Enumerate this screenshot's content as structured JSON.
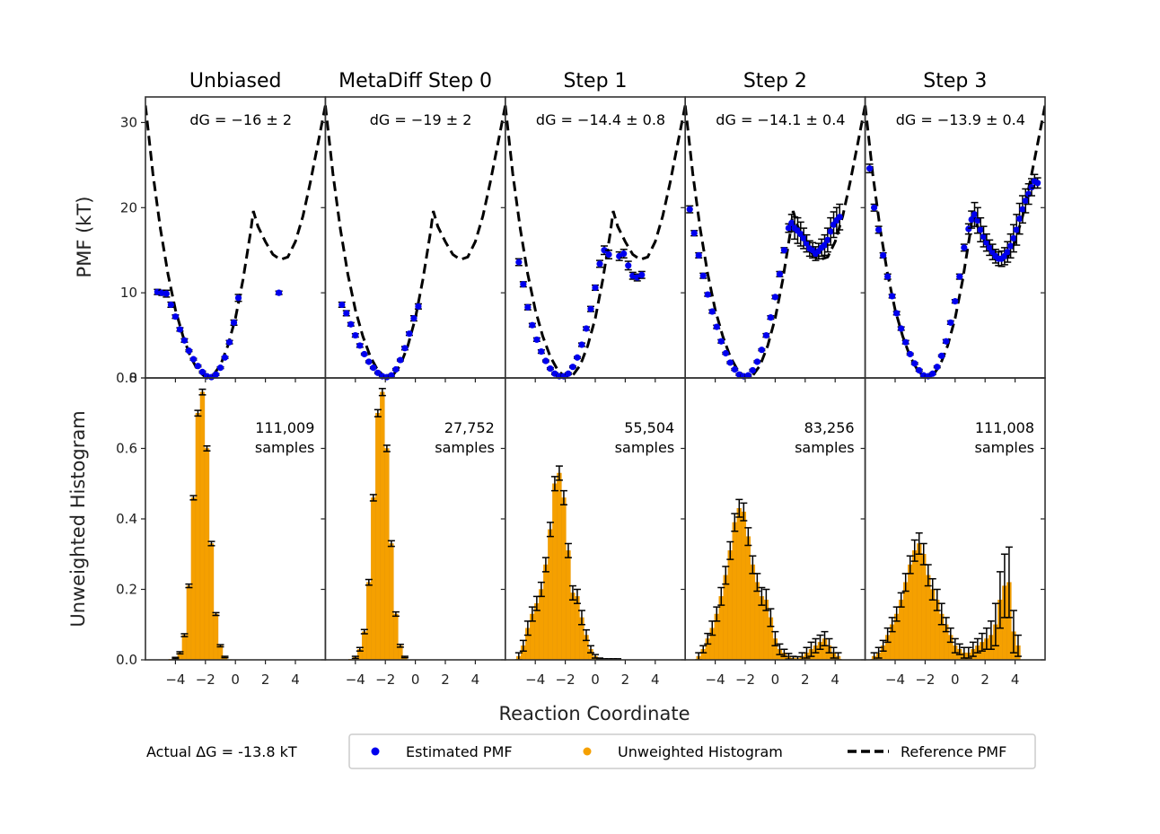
{
  "chart_data": {
    "type": "multi-panel",
    "xlabel": "Reaction Coordinate",
    "ylabel_top": "PMF (kT)",
    "ylabel_bottom": "Unweighted Histogram",
    "xlim": [
      -6,
      6
    ],
    "top_ylim": [
      0,
      33
    ],
    "bottom_ylim": [
      0,
      0.8
    ],
    "x_ticks": [
      "−4",
      "−2",
      "0",
      "2",
      "4"
    ],
    "top_y_ticks": [
      "0",
      "10",
      "20",
      "30"
    ],
    "bottom_y_ticks": [
      "0.0",
      "0.2",
      "0.4",
      "0.6",
      "0.8"
    ],
    "reference_pmf": {
      "name": "Reference PMF",
      "x": [
        -6,
        -5.5,
        -5,
        -4.5,
        -4,
        -3.5,
        -3,
        -2.5,
        -2,
        -1.5,
        -1,
        -0.5,
        0,
        0.5,
        1,
        1.2,
        1.5,
        2,
        2.5,
        3,
        3.5,
        4,
        4.5,
        5,
        5.5,
        6
      ],
      "y": [
        32,
        24,
        17.5,
        12.2,
        8,
        4.9,
        2.5,
        0.9,
        0.1,
        0.3,
        1.5,
        3.8,
        7,
        11.5,
        17,
        19.6,
        17.8,
        16,
        14.5,
        13.9,
        14.2,
        16,
        19,
        23,
        27.5,
        32
      ]
    },
    "panels": [
      {
        "title": "Unbiased",
        "dG": "dG = −16 ± 2",
        "samples_count": "111,009",
        "samples_word": "samples",
        "pmf_x": [
          -5.2,
          -4.9,
          -4.6,
          -4.3,
          -4.0,
          -3.7,
          -3.4,
          -3.1,
          -2.8,
          -2.5,
          -2.2,
          -1.9,
          -1.6,
          -1.3,
          -1.0,
          -0.7,
          -0.4,
          -0.1,
          0.2,
          2.9
        ],
        "pmf_y": [
          10.1,
          10.0,
          9.9,
          8.6,
          7.2,
          5.7,
          4.4,
          3.2,
          2.2,
          1.4,
          0.7,
          0.2,
          0.1,
          0.4,
          1.2,
          2.4,
          4.2,
          6.5,
          9.4,
          10.0
        ],
        "pmf_err": [
          0.3,
          0.3,
          0.4,
          0.3,
          0.2,
          0.2,
          0.2,
          0.1,
          0.1,
          0.1,
          0.1,
          0.1,
          0.1,
          0.1,
          0.1,
          0.1,
          0.2,
          0.3,
          0.4,
          0.2
        ],
        "hist_x": [
          -4.6,
          -4.3,
          -4.0,
          -3.7,
          -3.4,
          -3.1,
          -2.8,
          -2.5,
          -2.2,
          -1.9,
          -1.6,
          -1.3,
          -1.0,
          -0.7,
          -0.4,
          -0.1
        ],
        "hist_y": [
          0.0,
          0.002,
          0.005,
          0.02,
          0.07,
          0.21,
          0.46,
          0.7,
          0.76,
          0.6,
          0.33,
          0.13,
          0.04,
          0.008,
          0.001,
          0.0
        ],
        "hist_err": [
          0,
          0,
          0.002,
          0.003,
          0.004,
          0.005,
          0.006,
          0.008,
          0.008,
          0.007,
          0.006,
          0.004,
          0.003,
          0.002,
          0,
          0
        ]
      },
      {
        "title": "MetaDiff Step 0",
        "dG": "dG = −19 ± 2",
        "samples_count": "27,752",
        "samples_word": "samples",
        "pmf_x": [
          -4.9,
          -4.6,
          -4.3,
          -4.0,
          -3.7,
          -3.4,
          -3.1,
          -2.8,
          -2.5,
          -2.2,
          -1.9,
          -1.6,
          -1.3,
          -1.0,
          -0.7,
          -0.4,
          -0.1,
          0.2
        ],
        "pmf_y": [
          8.6,
          7.6,
          6.3,
          5.0,
          3.8,
          2.8,
          1.9,
          1.2,
          0.6,
          0.2,
          0.1,
          0.3,
          1.0,
          2.1,
          3.5,
          5.2,
          7.0,
          8.4
        ],
        "pmf_err": [
          0.3,
          0.3,
          0.2,
          0.2,
          0.2,
          0.1,
          0.1,
          0.1,
          0.1,
          0.1,
          0.1,
          0.1,
          0.1,
          0.1,
          0.2,
          0.2,
          0.3,
          0.3
        ],
        "hist_x": [
          -4.6,
          -4.3,
          -4.0,
          -3.7,
          -3.4,
          -3.1,
          -2.8,
          -2.5,
          -2.2,
          -1.9,
          -1.6,
          -1.3,
          -1.0,
          -0.7,
          -0.4
        ],
        "hist_y": [
          0.0,
          0.002,
          0.007,
          0.03,
          0.08,
          0.22,
          0.46,
          0.7,
          0.76,
          0.6,
          0.33,
          0.13,
          0.04,
          0.008,
          0.0
        ],
        "hist_err": [
          0,
          0,
          0.003,
          0.005,
          0.006,
          0.008,
          0.009,
          0.01,
          0.01,
          0.009,
          0.008,
          0.006,
          0.004,
          0.002,
          0
        ]
      },
      {
        "title": "Step 1",
        "dG": "dG = −14.4 ± 0.8",
        "samples_count": "55,504",
        "samples_word": "samples",
        "pmf_x": [
          -5.1,
          -4.8,
          -4.5,
          -4.2,
          -3.9,
          -3.6,
          -3.3,
          -3.0,
          -2.7,
          -2.4,
          -2.1,
          -1.8,
          -1.5,
          -1.2,
          -0.9,
          -0.6,
          -0.3,
          0.0,
          0.3,
          0.6,
          0.9,
          1.6,
          1.9,
          2.2,
          2.5,
          2.8,
          3.1
        ],
        "pmf_y": [
          13.6,
          11.0,
          8.3,
          6.2,
          4.5,
          3.1,
          2.0,
          1.1,
          0.5,
          0.2,
          0.2,
          0.5,
          1.3,
          2.4,
          3.9,
          5.8,
          8.1,
          10.6,
          13.4,
          15.0,
          14.5,
          14.3,
          14.6,
          13.2,
          12.0,
          11.8,
          12.1
        ],
        "pmf_err": [
          0.4,
          0.3,
          0.3,
          0.2,
          0.2,
          0.2,
          0.1,
          0.1,
          0.1,
          0.1,
          0.1,
          0.1,
          0.1,
          0.1,
          0.2,
          0.2,
          0.3,
          0.3,
          0.4,
          0.5,
          0.5,
          0.5,
          0.5,
          0.5,
          0.4,
          0.4,
          0.4
        ],
        "hist_x": [
          -5.1,
          -4.8,
          -4.5,
          -4.2,
          -3.9,
          -3.6,
          -3.3,
          -3.0,
          -2.7,
          -2.4,
          -2.1,
          -1.8,
          -1.5,
          -1.2,
          -0.9,
          -0.6,
          -0.3,
          0.0,
          0.3,
          0.6,
          0.9,
          1.2,
          1.5,
          1.8
        ],
        "hist_y": [
          0.01,
          0.04,
          0.09,
          0.13,
          0.16,
          0.2,
          0.27,
          0.37,
          0.5,
          0.53,
          0.46,
          0.31,
          0.19,
          0.18,
          0.12,
          0.07,
          0.03,
          0.01,
          0.003,
          0.002,
          0.002,
          0.002,
          0.002,
          0.0
        ],
        "hist_err": [
          0.01,
          0.015,
          0.02,
          0.02,
          0.02,
          0.02,
          0.02,
          0.02,
          0.02,
          0.02,
          0.02,
          0.02,
          0.02,
          0.02,
          0.02,
          0.015,
          0.01,
          0.005,
          0.002,
          0.001,
          0.001,
          0.001,
          0.001,
          0
        ]
      },
      {
        "title": "Step 2",
        "dG": "dG = −14.1 ± 0.4",
        "samples_count": "83,256",
        "samples_word": "samples",
        "pmf_x": [
          -5.7,
          -5.4,
          -5.1,
          -4.8,
          -4.5,
          -4.2,
          -3.9,
          -3.6,
          -3.3,
          -3.0,
          -2.7,
          -2.4,
          -2.1,
          -1.8,
          -1.5,
          -1.2,
          -0.9,
          -0.6,
          -0.3,
          0.0,
          0.3,
          0.6,
          0.9,
          1.1,
          1.3,
          1.5,
          1.7,
          1.9,
          2.1,
          2.3,
          2.5,
          2.7,
          2.9,
          3.1,
          3.3,
          3.5,
          3.7,
          3.9,
          4.1,
          4.3
        ],
        "pmf_y": [
          19.8,
          17.0,
          14.4,
          12.0,
          9.8,
          7.8,
          6.0,
          4.3,
          2.9,
          1.8,
          1.0,
          0.4,
          0.2,
          0.3,
          0.9,
          1.9,
          3.3,
          5.0,
          7.1,
          9.5,
          12.2,
          15.0,
          17.6,
          18.2,
          17.6,
          17.3,
          16.9,
          16.4,
          15.8,
          15.2,
          15.0,
          14.6,
          14.9,
          15.3,
          15.6,
          16.2,
          17.2,
          18.0,
          18.5,
          18.9
        ],
        "pmf_err": [
          0.4,
          0.3,
          0.3,
          0.3,
          0.2,
          0.2,
          0.2,
          0.2,
          0.1,
          0.1,
          0.1,
          0.1,
          0.1,
          0.1,
          0.1,
          0.1,
          0.1,
          0.2,
          0.2,
          0.2,
          0.3,
          0.3,
          0.5,
          1.0,
          1.3,
          1.5,
          1.4,
          1.2,
          1.0,
          0.9,
          0.9,
          0.8,
          0.9,
          1.0,
          1.2,
          1.4,
          1.6,
          1.5,
          1.5,
          1.5
        ],
        "hist_x": [
          -5.1,
          -4.8,
          -4.5,
          -4.2,
          -3.9,
          -3.6,
          -3.3,
          -3.0,
          -2.7,
          -2.4,
          -2.1,
          -1.8,
          -1.5,
          -1.2,
          -0.9,
          -0.6,
          -0.3,
          0.0,
          0.3,
          0.6,
          0.9,
          1.2,
          1.5,
          1.8,
          2.1,
          2.4,
          2.7,
          3.0,
          3.3,
          3.6,
          3.9,
          4.2
        ],
        "hist_y": [
          0.01,
          0.03,
          0.06,
          0.09,
          0.13,
          0.18,
          0.24,
          0.31,
          0.39,
          0.43,
          0.42,
          0.35,
          0.27,
          0.22,
          0.18,
          0.17,
          0.12,
          0.06,
          0.03,
          0.02,
          0.01,
          0.005,
          0.004,
          0.01,
          0.02,
          0.03,
          0.04,
          0.05,
          0.06,
          0.04,
          0.02,
          0.01
        ],
        "hist_err": [
          0.01,
          0.01,
          0.015,
          0.02,
          0.02,
          0.025,
          0.025,
          0.025,
          0.025,
          0.025,
          0.025,
          0.025,
          0.025,
          0.025,
          0.025,
          0.03,
          0.025,
          0.02,
          0.015,
          0.01,
          0.008,
          0.005,
          0.005,
          0.01,
          0.015,
          0.02,
          0.02,
          0.02,
          0.02,
          0.02,
          0.015,
          0.01
        ]
      },
      {
        "title": "Step 3",
        "dG": "dG = −13.9 ± 0.4",
        "samples_count": "111,008",
        "samples_word": "samples",
        "pmf_x": [
          -5.7,
          -5.4,
          -5.1,
          -4.8,
          -4.5,
          -4.2,
          -3.9,
          -3.6,
          -3.3,
          -3.0,
          -2.7,
          -2.4,
          -2.1,
          -1.8,
          -1.5,
          -1.2,
          -0.9,
          -0.6,
          -0.3,
          0.0,
          0.3,
          0.6,
          0.9,
          1.1,
          1.3,
          1.5,
          1.7,
          1.9,
          2.1,
          2.3,
          2.5,
          2.7,
          2.9,
          3.1,
          3.3,
          3.5,
          3.7,
          3.9,
          4.1,
          4.3,
          4.5,
          4.7,
          4.9,
          5.1,
          5.3,
          5.5
        ],
        "pmf_y": [
          24.6,
          20.0,
          17.4,
          14.4,
          11.9,
          9.6,
          7.6,
          5.8,
          4.2,
          2.8,
          1.7,
          0.9,
          0.3,
          0.2,
          0.5,
          1.3,
          2.6,
          4.3,
          6.5,
          9.0,
          11.9,
          15.3,
          17.5,
          18.6,
          19.2,
          18.5,
          17.4,
          16.6,
          15.9,
          15.3,
          14.8,
          14.3,
          14.0,
          14.0,
          14.3,
          14.8,
          15.5,
          16.4,
          17.4,
          18.7,
          19.8,
          20.8,
          21.6,
          22.4,
          23.1,
          22.9
        ],
        "pmf_err": [
          0.5,
          0.4,
          0.4,
          0.3,
          0.3,
          0.2,
          0.2,
          0.2,
          0.2,
          0.1,
          0.1,
          0.1,
          0.1,
          0.1,
          0.1,
          0.1,
          0.1,
          0.2,
          0.2,
          0.2,
          0.3,
          0.4,
          0.6,
          1.0,
          1.4,
          1.5,
          1.4,
          1.2,
          1.0,
          0.9,
          0.9,
          0.8,
          0.8,
          0.9,
          1.0,
          1.2,
          1.4,
          1.6,
          1.8,
          1.8,
          1.6,
          1.4,
          1.2,
          1.0,
          0.8,
          0.6
        ],
        "hist_x": [
          -5.4,
          -5.1,
          -4.8,
          -4.5,
          -4.2,
          -3.9,
          -3.6,
          -3.3,
          -3.0,
          -2.7,
          -2.4,
          -2.1,
          -1.8,
          -1.5,
          -1.2,
          -0.9,
          -0.6,
          -0.3,
          0.0,
          0.3,
          0.6,
          0.9,
          1.2,
          1.5,
          1.8,
          2.1,
          2.4,
          2.7,
          3.0,
          3.3,
          3.6,
          3.9,
          4.2
        ],
        "hist_y": [
          0.01,
          0.02,
          0.04,
          0.07,
          0.1,
          0.13,
          0.17,
          0.22,
          0.27,
          0.31,
          0.33,
          0.3,
          0.24,
          0.2,
          0.17,
          0.13,
          0.1,
          0.07,
          0.04,
          0.03,
          0.02,
          0.02,
          0.03,
          0.04,
          0.05,
          0.06,
          0.07,
          0.1,
          0.17,
          0.21,
          0.22,
          0.08,
          0.04
        ],
        "hist_err": [
          0.01,
          0.015,
          0.015,
          0.02,
          0.02,
          0.02,
          0.02,
          0.025,
          0.025,
          0.03,
          0.03,
          0.03,
          0.03,
          0.03,
          0.03,
          0.03,
          0.02,
          0.02,
          0.02,
          0.015,
          0.015,
          0.015,
          0.02,
          0.02,
          0.025,
          0.03,
          0.04,
          0.06,
          0.08,
          0.09,
          0.1,
          0.06,
          0.03
        ]
      }
    ],
    "legend": {
      "note": "Actual ΔG = -13.8 kT",
      "items": [
        {
          "label": "Estimated PMF",
          "marker": "dot",
          "color": "#0000ee"
        },
        {
          "label": "Unweighted Histogram",
          "marker": "dot",
          "color": "#f5a000"
        },
        {
          "label": "Reference PMF",
          "marker": "dashed-line",
          "color": "#000000"
        }
      ]
    },
    "colors": {
      "pmf_points": "#0000ee",
      "histogram": "#f5a000",
      "reference": "#000000",
      "errorbar": "#000000"
    }
  }
}
